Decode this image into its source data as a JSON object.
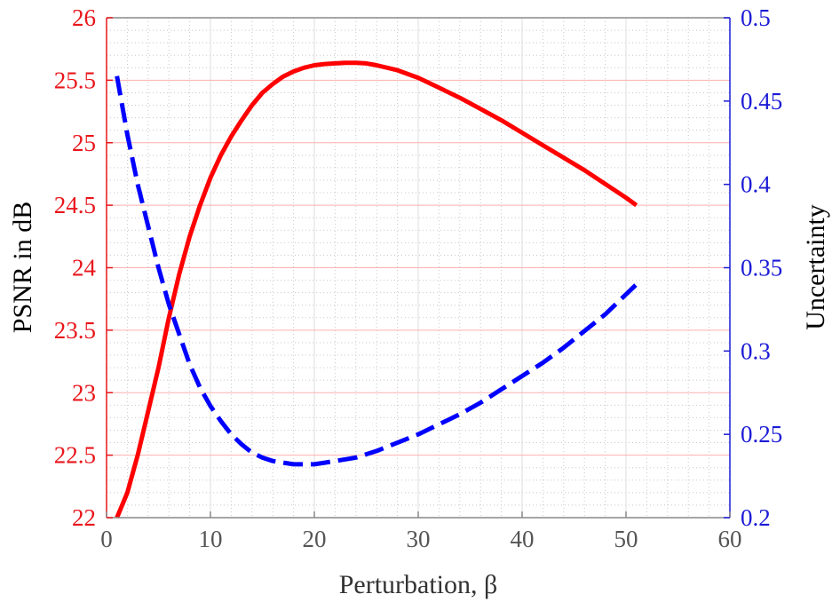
{
  "chart_data": {
    "type": "line",
    "title": "",
    "xlabel": "Perturbation, β",
    "ylabel_left": "PSNR in dB",
    "ylabel_right": "Uncertainty",
    "xlim": [
      0,
      60
    ],
    "ylim_left": [
      22,
      26
    ],
    "ylim_right": [
      0.2,
      0.5
    ],
    "x_ticks": [
      "0",
      "10",
      "20",
      "30",
      "40",
      "50",
      "60"
    ],
    "y_left_ticks": [
      "22",
      "22.5",
      "23",
      "23.5",
      "24",
      "24.5",
      "25",
      "25.5",
      "26"
    ],
    "y_right_ticks": [
      "0.2",
      "0.25",
      "0.3",
      "0.35",
      "0.4",
      "0.45",
      "0.5"
    ],
    "grid": true,
    "series": [
      {
        "axis": "left",
        "color": "#ff0000",
        "style": "solid",
        "x": [
          1,
          2,
          3,
          4,
          5,
          6,
          7,
          8,
          9,
          10,
          11,
          12,
          13,
          14,
          15,
          16,
          17,
          18,
          19,
          20,
          21,
          22,
          23,
          24,
          25,
          26,
          28,
          30,
          32,
          34,
          36,
          38,
          40,
          42,
          44,
          46,
          48,
          50,
          51
        ],
        "y": [
          22.0,
          22.2,
          22.5,
          22.85,
          23.2,
          23.6,
          23.95,
          24.25,
          24.5,
          24.72,
          24.9,
          25.05,
          25.18,
          25.3,
          25.4,
          25.47,
          25.53,
          25.57,
          25.6,
          25.62,
          25.63,
          25.635,
          25.64,
          25.64,
          25.635,
          25.62,
          25.58,
          25.52,
          25.44,
          25.36,
          25.27,
          25.18,
          25.08,
          24.98,
          24.88,
          24.78,
          24.67,
          24.56,
          24.5
        ]
      },
      {
        "axis": "right",
        "color": "#0000ff",
        "style": "dashed",
        "x": [
          1,
          2,
          3,
          4,
          5,
          6,
          7,
          8,
          9,
          10,
          11,
          12,
          13,
          14,
          15,
          16,
          17,
          18,
          19,
          20,
          21,
          22,
          23,
          24,
          26,
          28,
          30,
          32,
          34,
          36,
          38,
          40,
          42,
          44,
          46,
          48,
          50,
          51
        ],
        "y": [
          0.465,
          0.43,
          0.4,
          0.375,
          0.35,
          0.328,
          0.31,
          0.292,
          0.278,
          0.267,
          0.258,
          0.25,
          0.244,
          0.239,
          0.236,
          0.234,
          0.233,
          0.232,
          0.232,
          0.232,
          0.233,
          0.234,
          0.235,
          0.236,
          0.24,
          0.245,
          0.25,
          0.256,
          0.262,
          0.269,
          0.277,
          0.285,
          0.293,
          0.302,
          0.312,
          0.322,
          0.334,
          0.34
        ]
      }
    ]
  }
}
